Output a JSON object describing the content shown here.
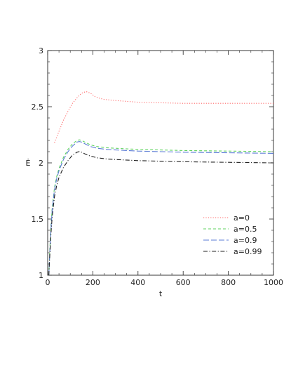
{
  "chart_data": {
    "type": "line",
    "title": "",
    "xlabel": "t",
    "ylabel": "Ė",
    "xlim": [
      0,
      1000
    ],
    "ylim": [
      1,
      3
    ],
    "x_ticks": [
      0,
      200,
      400,
      600,
      800,
      1000
    ],
    "y_ticks": [
      1,
      1.5,
      2,
      2.5,
      3
    ],
    "x_tick_labels": [
      "0",
      "200",
      "400",
      "600",
      "800",
      "1000"
    ],
    "y_tick_labels": [
      "1",
      "1.5",
      "2",
      "2.5",
      "3"
    ],
    "grid": false,
    "legend_position": "lower-right",
    "series": [
      {
        "name": "a=0",
        "color": "#ff6a6a",
        "dash": "dotted",
        "x": [
          30,
          50,
          70,
          90,
          110,
          130,
          150,
          170,
          190,
          210,
          230,
          250,
          300,
          400,
          500,
          600,
          700,
          800,
          900,
          1000
        ],
        "y": [
          2.18,
          2.28,
          2.38,
          2.46,
          2.53,
          2.58,
          2.62,
          2.635,
          2.62,
          2.59,
          2.575,
          2.565,
          2.555,
          2.54,
          2.535,
          2.53,
          2.53,
          2.53,
          2.53,
          2.53
        ]
      },
      {
        "name": "a=0.5",
        "color": "#5fd35f",
        "dash": "dashed",
        "x": [
          5,
          10,
          15,
          20,
          30,
          40,
          50,
          70,
          90,
          110,
          130,
          140,
          150,
          170,
          190,
          220,
          260,
          300,
          400,
          500,
          600,
          800,
          1000
        ],
        "y": [
          1.0,
          1.25,
          1.45,
          1.6,
          1.78,
          1.88,
          1.95,
          2.05,
          2.12,
          2.17,
          2.2,
          2.205,
          2.2,
          2.18,
          2.16,
          2.145,
          2.135,
          2.13,
          2.12,
          2.115,
          2.11,
          2.105,
          2.1
        ]
      },
      {
        "name": "a=0.9",
        "color": "#5b7bd5",
        "dash": "longdash",
        "x": [
          5,
          10,
          15,
          20,
          30,
          40,
          50,
          70,
          90,
          110,
          130,
          140,
          150,
          170,
          190,
          220,
          260,
          300,
          400,
          500,
          600,
          800,
          1000
        ],
        "y": [
          1.0,
          1.22,
          1.42,
          1.58,
          1.76,
          1.86,
          1.93,
          2.03,
          2.1,
          2.15,
          2.185,
          2.19,
          2.185,
          2.165,
          2.145,
          2.13,
          2.12,
          2.115,
          2.105,
          2.1,
          2.095,
          2.09,
          2.085
        ]
      },
      {
        "name": "a=0.99",
        "color": "#222222",
        "dash": "dashdot",
        "x": [
          5,
          10,
          15,
          20,
          30,
          40,
          50,
          70,
          90,
          110,
          130,
          140,
          150,
          170,
          190,
          220,
          260,
          300,
          400,
          500,
          600,
          800,
          1000
        ],
        "y": [
          1.0,
          1.2,
          1.38,
          1.52,
          1.7,
          1.8,
          1.87,
          1.96,
          2.02,
          2.07,
          2.095,
          2.1,
          2.095,
          2.075,
          2.06,
          2.045,
          2.035,
          2.03,
          2.02,
          2.015,
          2.01,
          2.005,
          2.0
        ]
      }
    ]
  }
}
